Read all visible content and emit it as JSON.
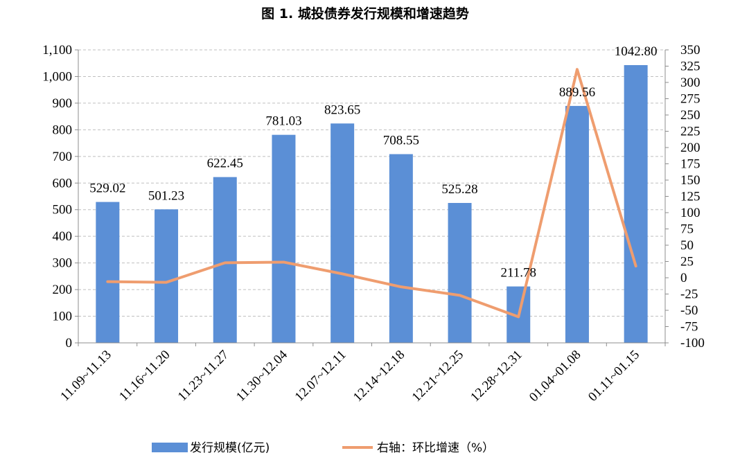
{
  "chart_data": {
    "type": "bar",
    "title": "图 1. 城投债券发行规模和增速趋势",
    "categories": [
      "11.09~11.13",
      "11.16~11.20",
      "11.23~11.27",
      "11.30~12.04",
      "12.07~12.11",
      "12.14~12.18",
      "12.21~12.25",
      "12.28~12.31",
      "01.04~01.08",
      "01.11~01.15"
    ],
    "series": [
      {
        "name": "发行规模(亿元)",
        "type": "bar",
        "axis": "left",
        "color": "#5b8fd6",
        "values": [
          529.02,
          501.23,
          622.45,
          781.03,
          823.65,
          708.55,
          525.28,
          211.78,
          889.56,
          1042.8
        ],
        "labels": [
          "529.02",
          "501.23",
          "622.45",
          "781.03",
          "823.65",
          "708.55",
          "525.28",
          "211.78",
          "889.56",
          "1042.80"
        ]
      },
      {
        "name": "右轴：环比增速（%）",
        "type": "line",
        "axis": "right",
        "color": "#ef9d6f",
        "values": [
          -6,
          -7,
          23,
          24,
          6,
          -14,
          -27,
          -60,
          320,
          18
        ]
      }
    ],
    "y_left": {
      "min": 0,
      "max": 1100,
      "step": 100,
      "tick_labels": [
        "0",
        "100",
        "200",
        "300",
        "400",
        "500",
        "600",
        "700",
        "800",
        "900",
        "1,000",
        "1,100"
      ]
    },
    "y_right": {
      "min": -100,
      "max": 350,
      "step": 25,
      "tick_labels": [
        "-100",
        "-75",
        "-50",
        "-25",
        "0",
        "25",
        "50",
        "75",
        "100",
        "125",
        "150",
        "175",
        "200",
        "225",
        "250",
        "275",
        "300",
        "325",
        "350"
      ]
    },
    "grid": true,
    "legend_position": "bottom"
  }
}
